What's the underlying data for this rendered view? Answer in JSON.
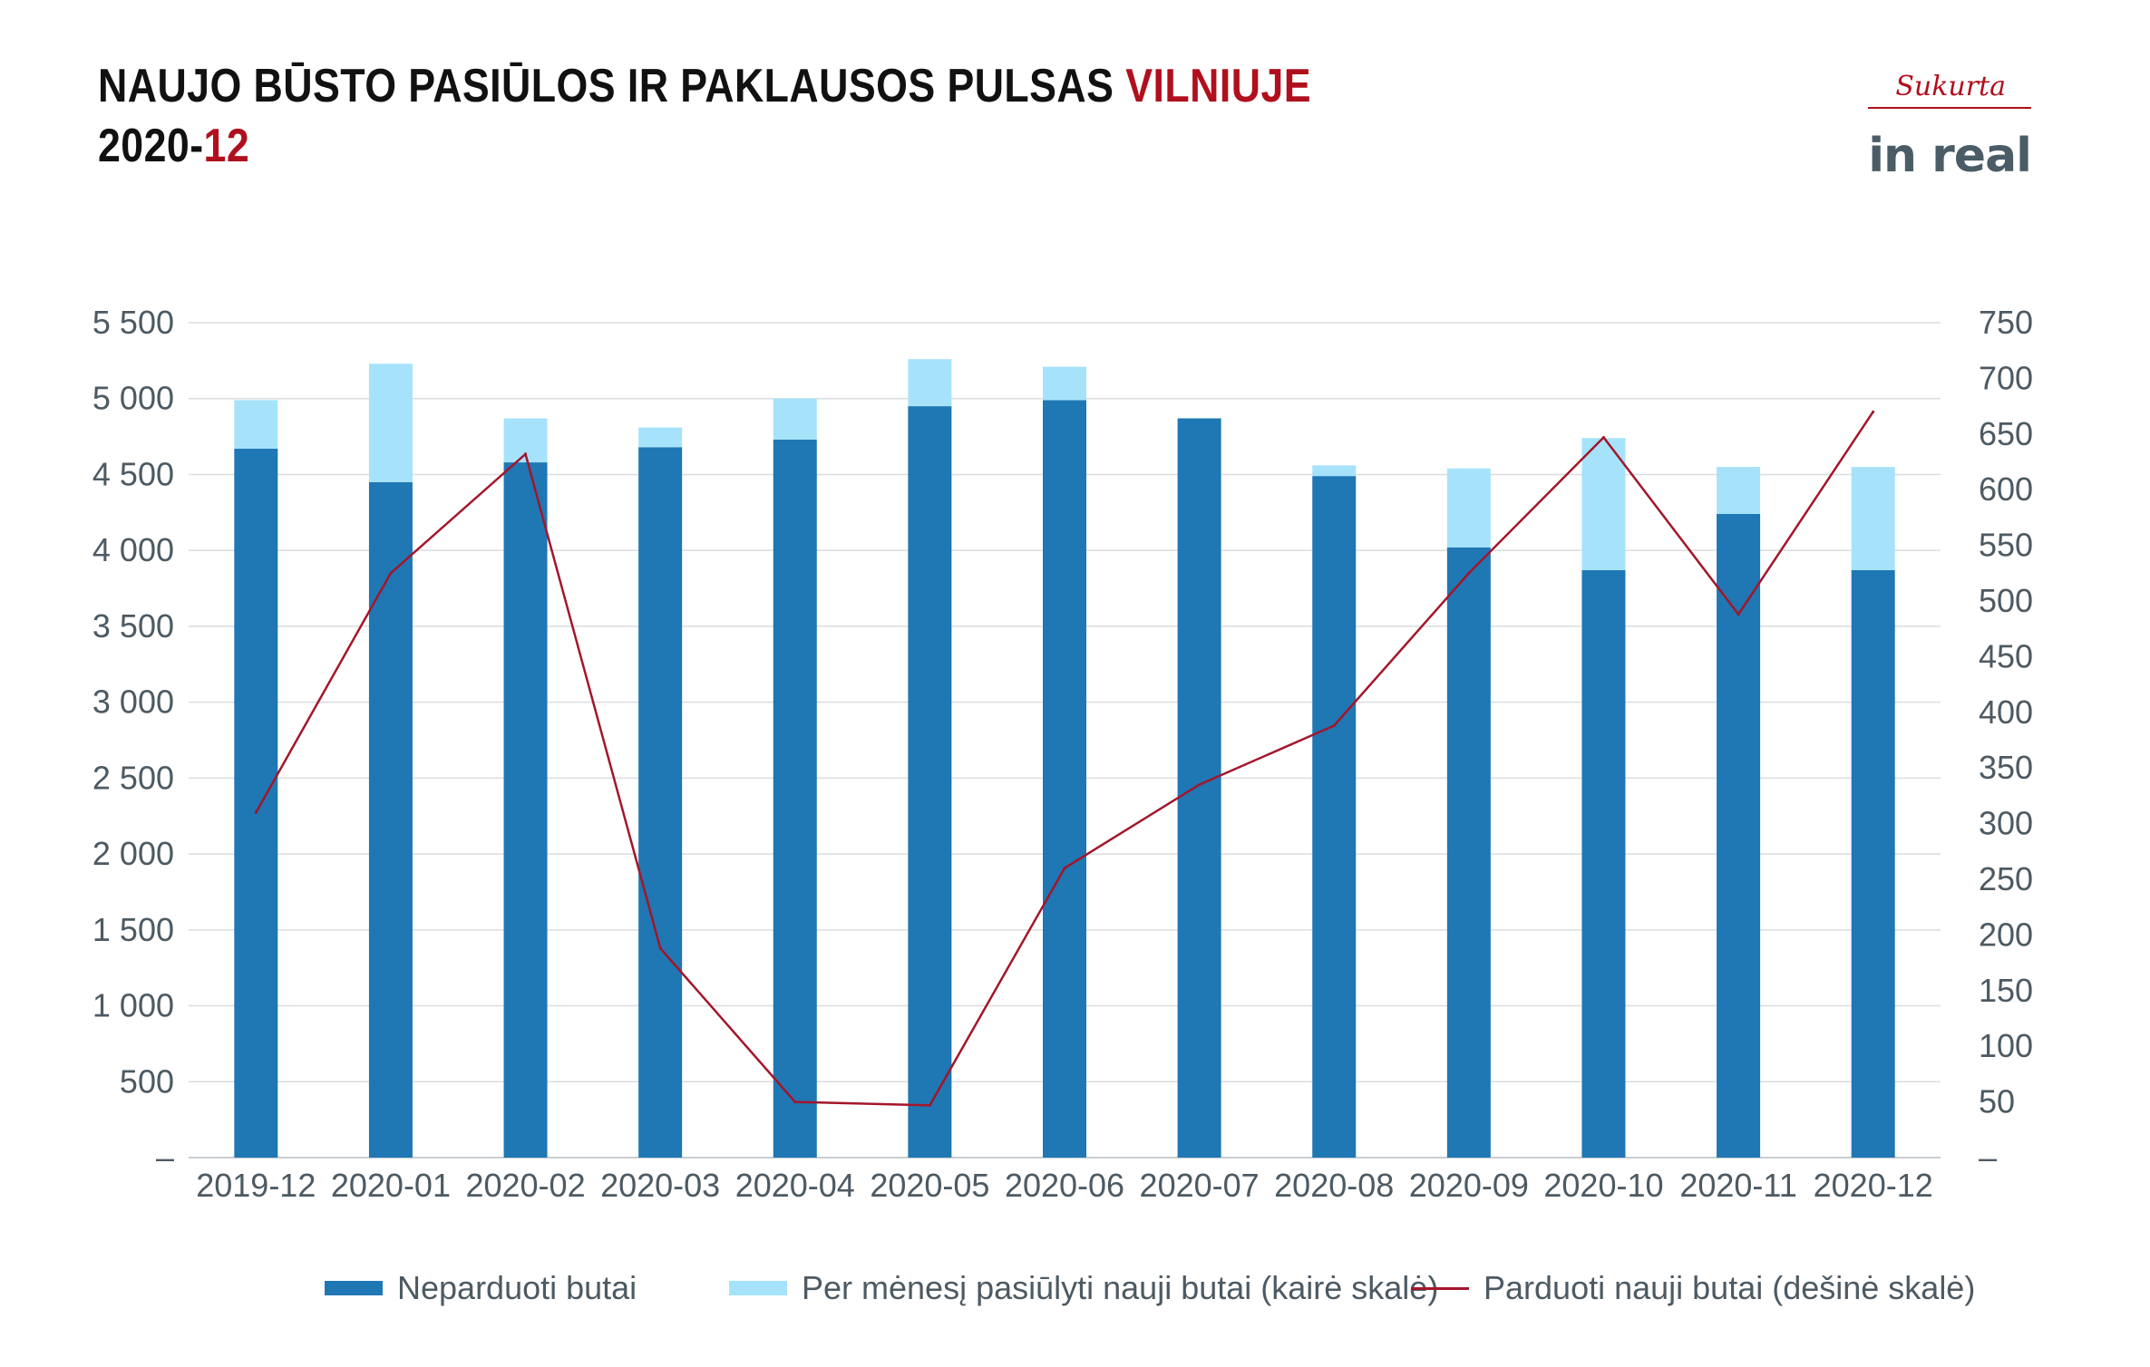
{
  "header": {
    "title_line1_main": "NAUJO BŪSTO PASIŪLOS IR PAKLAUSOS PULSAS ",
    "title_line1_accent": "VILNIUJE",
    "title_line2_main": "2020-",
    "title_line2_accent": "12"
  },
  "logo": {
    "tagline": "Sukurta",
    "brand": "in real",
    "brand_color": "#4a5c66",
    "accent_color": "#b0101e"
  },
  "colors": {
    "unsold": "#1f77b4",
    "offered": "#a6e3fb",
    "sold": "#a3162a",
    "grid": "#dadde0",
    "tick": "#4d5a63"
  },
  "chart_data": {
    "type": "bar",
    "categories": [
      "2019-12",
      "2020-01",
      "2020-02",
      "2020-03",
      "2020-04",
      "2020-05",
      "2020-06",
      "2020-07",
      "2020-08",
      "2020-09",
      "2020-10",
      "2020-11",
      "2020-12"
    ],
    "series": [
      {
        "name": "Neparduoti butai",
        "kind": "stacked-bar",
        "axis": "left",
        "values": [
          4670,
          4450,
          4580,
          4680,
          4730,
          4950,
          4990,
          4870,
          4490,
          4020,
          3870,
          4240,
          3870
        ]
      },
      {
        "name": "Per mėnesį pasiūlyti nauji butai (kairė skalė)",
        "kind": "stacked-bar",
        "axis": "left",
        "values": [
          320,
          780,
          290,
          130,
          270,
          310,
          220,
          0,
          70,
          520,
          870,
          310,
          680
        ]
      },
      {
        "name": "Parduoti nauji butai (dešinė skalė)",
        "kind": "line",
        "axis": "right",
        "values": [
          310,
          525,
          632,
          188,
          50,
          47,
          260,
          335,
          388,
          525,
          647,
          488,
          670
        ]
      }
    ],
    "left_axis": {
      "min": 0,
      "max": 5500,
      "step": 500,
      "tick_labels": [
        "–",
        "500",
        "1 000",
        "1 500",
        "2 000",
        "2 500",
        "3 000",
        "3 500",
        "4 000",
        "4 500",
        "5 000",
        "5 500"
      ]
    },
    "right_axis": {
      "min": 0,
      "max": 750,
      "step": 50,
      "tick_labels": [
        "–",
        "50",
        "100",
        "150",
        "200",
        "250",
        "300",
        "350",
        "400",
        "450",
        "500",
        "550",
        "600",
        "650",
        "700",
        "750"
      ]
    },
    "grid": true,
    "legend_position": "bottom"
  }
}
